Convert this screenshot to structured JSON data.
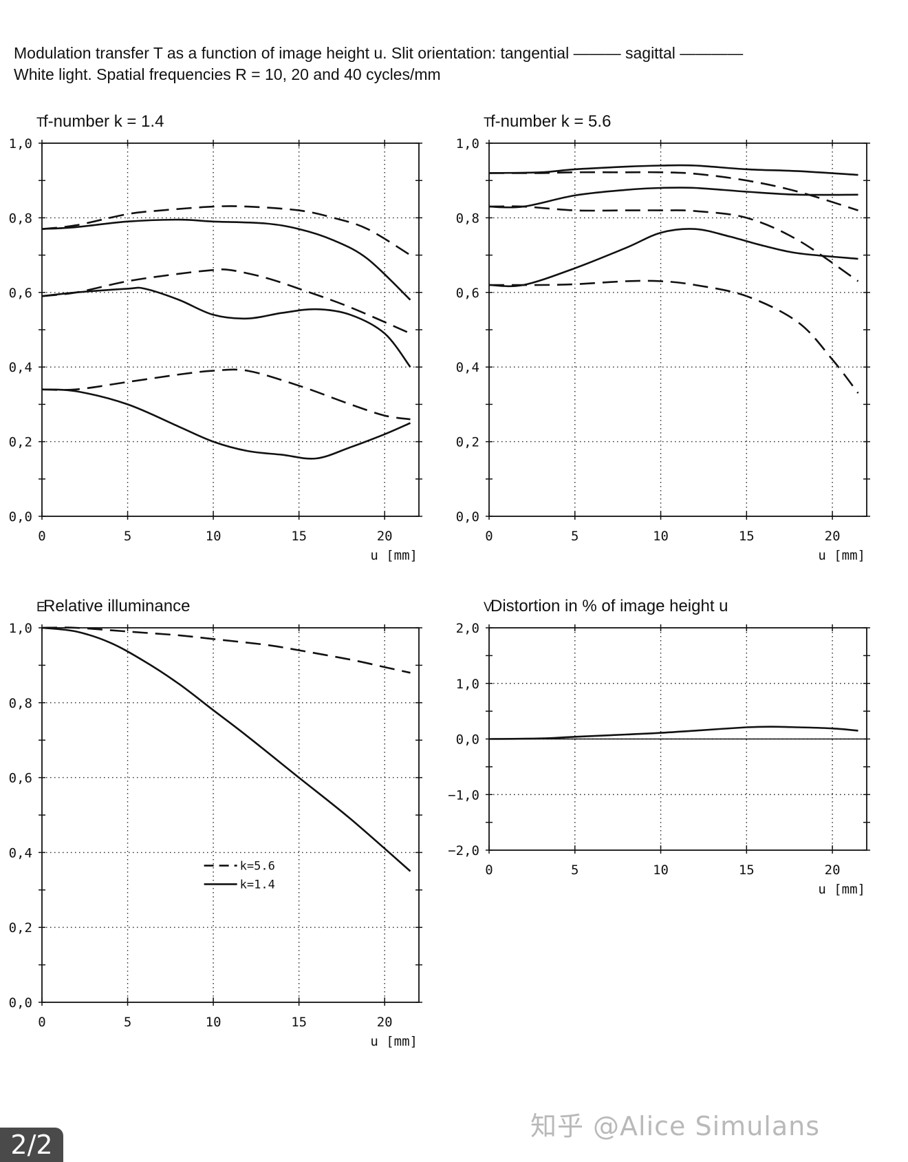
{
  "header": {
    "line1": "Modulation transfer T as a function of image height u. Slit orientation: tangential ——— sagittal ————",
    "line2": "White light. Spatial frequencies R = 10, 20 and 40 cycles/mm"
  },
  "watermark": "知乎 @Alice Simulans",
  "pager": "2/2",
  "chart_data": [
    {
      "type": "line",
      "axis_symbol": "T",
      "title": "f-number k = 1.4",
      "xlabel": "u [mm]",
      "xlim": [
        0,
        22
      ],
      "ylim": [
        0,
        1
      ],
      "xticks": [
        "0",
        "5",
        "10",
        "15",
        "20"
      ],
      "yticks": [
        "0,0",
        "0,2",
        "0,4",
        "0,6",
        "0,8",
        "1,0"
      ],
      "grid": true,
      "series": [
        {
          "style": "dashed",
          "x": [
            0,
            2,
            5,
            7,
            10,
            12,
            15,
            17,
            19,
            21.5
          ],
          "y": [
            0.77,
            0.78,
            0.81,
            0.82,
            0.83,
            0.83,
            0.82,
            0.8,
            0.77,
            0.7
          ]
        },
        {
          "style": "solid",
          "x": [
            0,
            2,
            5,
            8,
            10,
            13,
            15,
            17,
            19,
            21.5
          ],
          "y": [
            0.77,
            0.775,
            0.79,
            0.795,
            0.79,
            0.785,
            0.77,
            0.74,
            0.69,
            0.58
          ]
        },
        {
          "style": "dashed",
          "x": [
            0,
            2,
            5,
            8,
            10,
            11,
            13,
            15,
            18,
            21.5
          ],
          "y": [
            0.59,
            0.6,
            0.63,
            0.65,
            0.66,
            0.66,
            0.64,
            0.61,
            0.56,
            0.49
          ]
        },
        {
          "style": "solid",
          "x": [
            0,
            2,
            5,
            6,
            8,
            10,
            12,
            14,
            16,
            18,
            20,
            21.5
          ],
          "y": [
            0.59,
            0.6,
            0.61,
            0.61,
            0.58,
            0.54,
            0.53,
            0.545,
            0.555,
            0.54,
            0.49,
            0.4
          ]
        },
        {
          "style": "dashed",
          "x": [
            0,
            2,
            5,
            8,
            10,
            12,
            15,
            18,
            20,
            21.5
          ],
          "y": [
            0.34,
            0.34,
            0.36,
            0.38,
            0.39,
            0.39,
            0.35,
            0.3,
            0.27,
            0.26
          ]
        },
        {
          "style": "solid",
          "x": [
            0,
            2,
            5,
            8,
            10,
            12,
            14,
            16,
            18,
            20,
            21.5
          ],
          "y": [
            0.34,
            0.335,
            0.3,
            0.24,
            0.2,
            0.175,
            0.165,
            0.155,
            0.185,
            0.22,
            0.25
          ]
        }
      ]
    },
    {
      "type": "line",
      "axis_symbol": "T",
      "title": "f-number k = 5.6",
      "xlabel": "u [mm]",
      "xlim": [
        0,
        22
      ],
      "ylim": [
        0,
        1
      ],
      "xticks": [
        "0",
        "5",
        "10",
        "15",
        "20"
      ],
      "yticks": [
        "0,0",
        "0,2",
        "0,4",
        "0,6",
        "0,8",
        "1,0"
      ],
      "grid": true,
      "series": [
        {
          "style": "solid",
          "x": [
            0,
            3,
            5,
            8,
            10,
            12,
            15,
            18,
            21.5
          ],
          "y": [
            0.92,
            0.922,
            0.93,
            0.937,
            0.94,
            0.94,
            0.93,
            0.925,
            0.915
          ]
        },
        {
          "style": "dashed",
          "x": [
            0,
            3,
            5,
            8,
            10,
            12,
            15,
            18,
            21.5
          ],
          "y": [
            0.92,
            0.92,
            0.922,
            0.922,
            0.922,
            0.918,
            0.9,
            0.87,
            0.82
          ]
        },
        {
          "style": "solid",
          "x": [
            0,
            2,
            5,
            8,
            10,
            12,
            15,
            18,
            21.5
          ],
          "y": [
            0.83,
            0.83,
            0.86,
            0.875,
            0.88,
            0.88,
            0.87,
            0.862,
            0.862
          ]
        },
        {
          "style": "dashed",
          "x": [
            0,
            2,
            5,
            8,
            10,
            12,
            15,
            18,
            21.5
          ],
          "y": [
            0.83,
            0.83,
            0.82,
            0.82,
            0.82,
            0.818,
            0.8,
            0.74,
            0.63
          ]
        },
        {
          "style": "solid",
          "x": [
            0,
            2,
            5,
            8,
            10,
            12,
            14,
            16,
            18,
            21.5
          ],
          "y": [
            0.62,
            0.62,
            0.665,
            0.72,
            0.76,
            0.77,
            0.75,
            0.725,
            0.705,
            0.69
          ]
        },
        {
          "style": "dashed",
          "x": [
            0,
            3,
            5,
            8,
            10,
            12,
            15,
            18,
            20,
            21.5
          ],
          "y": [
            0.62,
            0.62,
            0.622,
            0.63,
            0.63,
            0.62,
            0.59,
            0.52,
            0.42,
            0.33
          ]
        }
      ]
    },
    {
      "type": "line",
      "axis_symbol": "E",
      "title": "Relative illuminance",
      "xlabel": "u [mm]",
      "xlim": [
        0,
        22
      ],
      "ylim": [
        0,
        1
      ],
      "xticks": [
        "0",
        "5",
        "10",
        "15",
        "20"
      ],
      "yticks": [
        "0,0",
        "0,2",
        "0,4",
        "0,6",
        "0,8",
        "1,0"
      ],
      "grid": true,
      "legend": "center",
      "series": [
        {
          "name": "k=5.6",
          "style": "dashed",
          "x": [
            0,
            2,
            5,
            8,
            10,
            13,
            15,
            18,
            20,
            21.5
          ],
          "y": [
            1.0,
            1.0,
            0.99,
            0.98,
            0.97,
            0.955,
            0.94,
            0.915,
            0.895,
            0.88
          ]
        },
        {
          "name": "k=1.4",
          "style": "solid",
          "x": [
            0,
            2,
            4,
            6,
            8,
            10,
            12,
            15,
            18,
            21.5
          ],
          "y": [
            1.0,
            0.99,
            0.96,
            0.91,
            0.85,
            0.78,
            0.71,
            0.6,
            0.49,
            0.35
          ]
        }
      ]
    },
    {
      "type": "line",
      "axis_symbol": "V",
      "title": "Distortion in % of image height u",
      "xlabel": "u [mm]",
      "xlim": [
        0,
        22
      ],
      "ylim": [
        -2,
        2
      ],
      "xticks": [
        "0",
        "5",
        "10",
        "15",
        "20"
      ],
      "yticks": [
        "−2,0",
        "−1,0",
        "0,0",
        "1,0",
        "2,0"
      ],
      "grid": true,
      "series": [
        {
          "style": "solid",
          "x": [
            0,
            3,
            5,
            8,
            10,
            12,
            15,
            16.5,
            18,
            20,
            21.5
          ],
          "y": [
            0.0,
            0.01,
            0.04,
            0.08,
            0.11,
            0.15,
            0.21,
            0.22,
            0.21,
            0.19,
            0.15
          ]
        }
      ]
    }
  ]
}
